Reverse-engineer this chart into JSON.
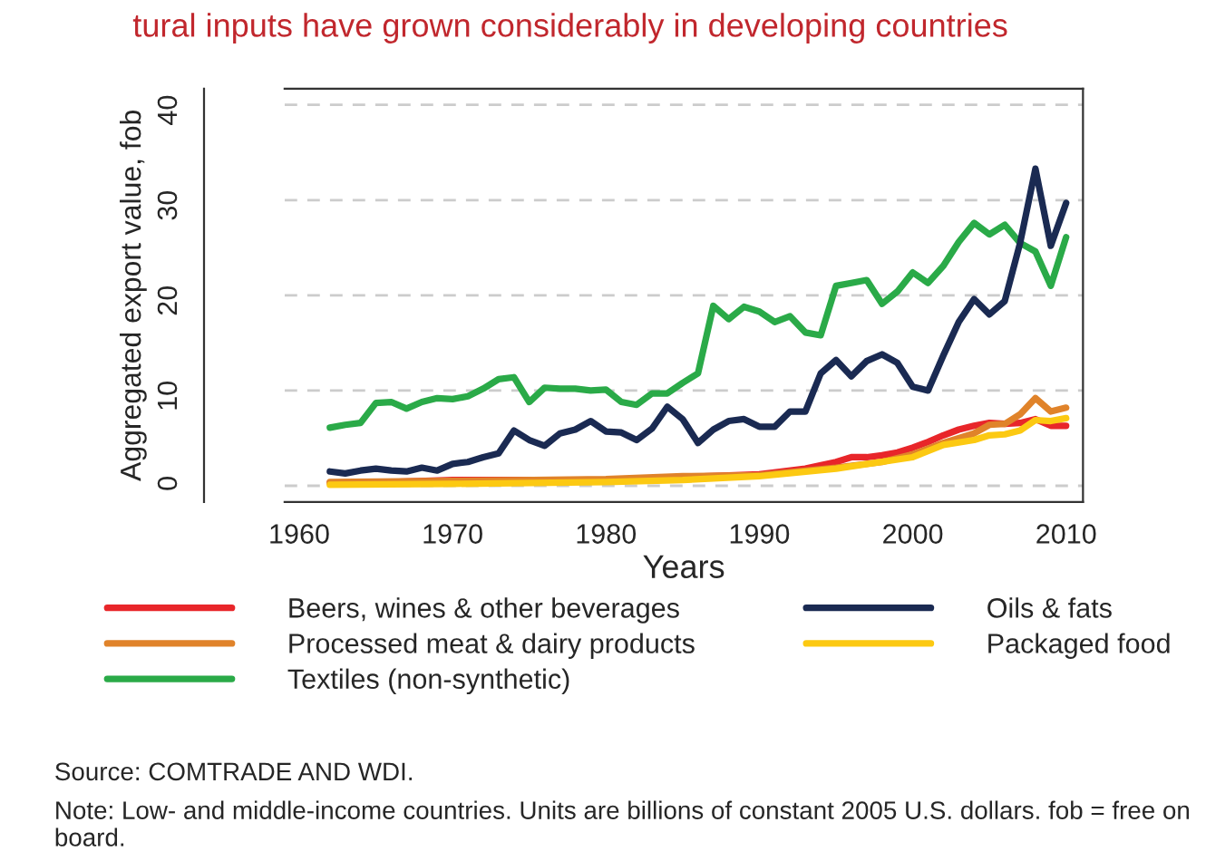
{
  "chart_data": {
    "type": "line",
    "title": "tural inputs have grown considerably in developing countries",
    "xlabel": "Years",
    "ylabel": "Aggregated export value, fob",
    "xlim": [
      1959.05,
      2011.1
    ],
    "xticks": [
      1960,
      1970,
      1980,
      1990,
      2000,
      2010
    ],
    "ylim": [
      -1.7,
      41.7
    ],
    "yticks": [
      0,
      10,
      20,
      30,
      40
    ],
    "grid": "y",
    "legend": "bottom",
    "series": [
      {
        "name": "Beers, wines & other beverages",
        "color": "#e8262a",
        "x": [
          1962,
          1966,
          1970,
          1975,
          1980,
          1985,
          1990,
          1993,
          1995,
          1996,
          1997,
          1998,
          1999,
          2000,
          2001,
          2002,
          2003,
          2004,
          2005,
          2006,
          2007,
          2008,
          2009,
          2010
        ],
        "values": [
          0.3,
          0.4,
          0.6,
          0.6,
          0.6,
          0.9,
          1.2,
          1.8,
          2.5,
          3.0,
          3.0,
          3.2,
          3.5,
          4.0,
          4.6,
          5.3,
          5.9,
          6.3,
          6.6,
          6.5,
          6.6,
          7.0,
          6.3,
          6.3
        ]
      },
      {
        "name": "Processed meat & dairy products",
        "color": "#e0832a",
        "x": [
          1962,
          1970,
          1980,
          1985,
          1990,
          1995,
          1998,
          2000,
          2002,
          2004,
          2005,
          2006,
          2007,
          2008,
          2009,
          2010
        ],
        "values": [
          0.4,
          0.5,
          0.7,
          1.0,
          1.1,
          1.9,
          2.5,
          3.3,
          4.5,
          5.5,
          6.4,
          6.5,
          7.5,
          9.2,
          7.8,
          8.2
        ]
      },
      {
        "name": "Textiles (non-synthetic)",
        "color": "#2aaa48",
        "x": [
          1962,
          1963,
          1964,
          1965,
          1966,
          1967,
          1968,
          1969,
          1970,
          1971,
          1972,
          1973,
          1974,
          1975,
          1976,
          1977,
          1978,
          1979,
          1980,
          1981,
          1982,
          1983,
          1984,
          1985,
          1986,
          1987,
          1988,
          1989,
          1990,
          1991,
          1992,
          1993,
          1994,
          1995,
          1996,
          1997,
          1998,
          1999,
          2000,
          2001,
          2002,
          2003,
          2004,
          2005,
          2006,
          2007,
          2008,
          2009,
          2010
        ],
        "values": [
          6.1,
          6.4,
          6.6,
          8.7,
          8.8,
          8.1,
          8.8,
          9.2,
          9.1,
          9.4,
          10.2,
          11.2,
          11.4,
          8.8,
          10.3,
          10.2,
          10.2,
          10.0,
          10.1,
          8.8,
          8.5,
          9.7,
          9.7,
          10.8,
          11.8,
          18.9,
          17.5,
          18.8,
          18.3,
          17.2,
          17.8,
          16.1,
          15.8,
          21.0,
          21.3,
          21.6,
          19.1,
          20.4,
          22.4,
          21.3,
          23.1,
          25.6,
          27.6,
          26.4,
          27.4,
          25.5,
          24.6,
          21.0,
          26.1
        ]
      },
      {
        "name": "Oils & fats",
        "color": "#1a2a52",
        "x": [
          1962,
          1963,
          1964,
          1965,
          1966,
          1967,
          1968,
          1969,
          1970,
          1971,
          1972,
          1973,
          1974,
          1975,
          1976,
          1977,
          1978,
          1979,
          1980,
          1981,
          1982,
          1983,
          1984,
          1985,
          1986,
          1987,
          1988,
          1989,
          1990,
          1991,
          1992,
          1993,
          1994,
          1995,
          1996,
          1997,
          1998,
          1999,
          2000,
          2001,
          2002,
          2003,
          2004,
          2005,
          2006,
          2007,
          2008,
          2009,
          2010
        ],
        "values": [
          1.5,
          1.3,
          1.6,
          1.8,
          1.6,
          1.5,
          1.9,
          1.6,
          2.3,
          2.5,
          3.0,
          3.4,
          5.8,
          4.8,
          4.2,
          5.5,
          5.9,
          6.8,
          5.7,
          5.6,
          4.8,
          6.0,
          8.3,
          7.0,
          4.5,
          5.9,
          6.8,
          7.0,
          6.2,
          6.2,
          7.8,
          7.8,
          11.8,
          13.2,
          11.5,
          13.1,
          13.8,
          12.9,
          10.4,
          10.0,
          13.7,
          17.2,
          19.6,
          18.0,
          19.4,
          25.5,
          33.3,
          25.2,
          29.7
        ]
      },
      {
        "name": "Packaged food",
        "color": "#fcc912",
        "x": [
          1962,
          1970,
          1980,
          1985,
          1990,
          1995,
          2000,
          2002,
          2004,
          2005,
          2006,
          2007,
          2008,
          2009,
          2010
        ],
        "values": [
          0.1,
          0.2,
          0.4,
          0.6,
          1.0,
          1.8,
          3.0,
          4.3,
          4.8,
          5.3,
          5.4,
          5.8,
          6.9,
          6.8,
          7.1
        ]
      }
    ],
    "annotations": [
      "Source: COMTRADE AND WDI.",
      "Note: Low- and middle-income countries. Units are billions of constant 2005 U.S. dollars. fob = free on board."
    ]
  }
}
